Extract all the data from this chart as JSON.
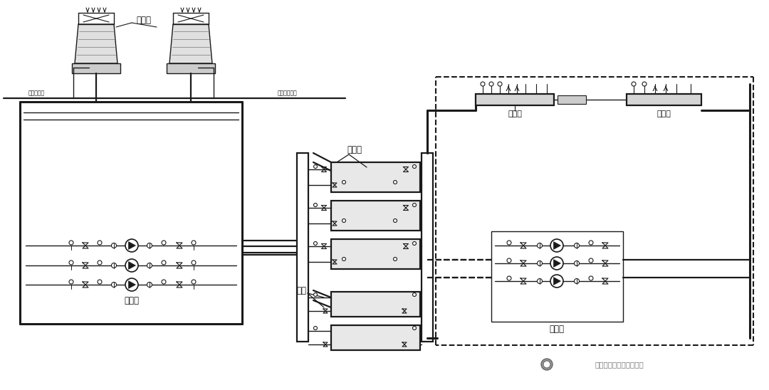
{
  "bg_color": "#ffffff",
  "lc": "#1a1a1a",
  "gray_fill": "#d8d8d8",
  "light_fill": "#eeeeee",
  "label_lengta": "冷却塔",
  "label_lengbeng": "冷却泵",
  "label_zhilengji": "制冷机",
  "label_guolu": "锅炉",
  "label_fenshui": "分水器",
  "label_jishui": "集水器",
  "label_lengdonbeng": "冷冻泵",
  "label_buchong": "补补给水管",
  "label_paishui": "屏幂层排水口",
  "watermark": "制冷空调换热器技术联盟"
}
